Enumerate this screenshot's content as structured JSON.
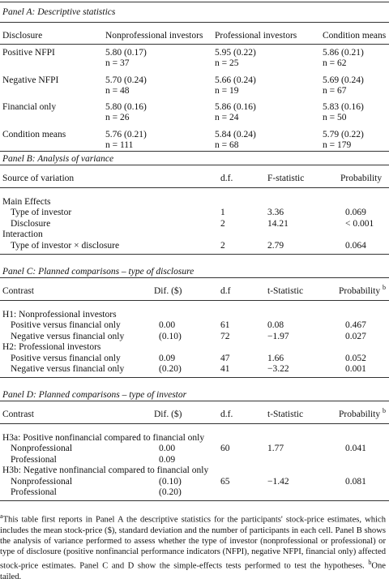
{
  "panel_a": {
    "title": "Panel A: Descriptive statistics",
    "headers": [
      "Disclosure",
      "Nonprofessional investors",
      "Professional investors",
      "Condition means"
    ],
    "rows": [
      {
        "label": "Positive NFPI",
        "cells": [
          [
            "5.80 (0.17)",
            "n = 37"
          ],
          [
            "5.95 (0.22)",
            "n = 25"
          ],
          [
            "5.86 (0.21)",
            "n = 62"
          ]
        ]
      },
      {
        "label": "Negative NFPI",
        "cells": [
          [
            "5.70 (0.24)",
            "n = 48"
          ],
          [
            "5.66 (0.24)",
            "n = 19"
          ],
          [
            "5.69 (0.24)",
            "n = 67"
          ]
        ]
      },
      {
        "label": "Financial only",
        "cells": [
          [
            "5.80 (0.16)",
            "n = 26"
          ],
          [
            "5.86 (0.16)",
            "n = 24"
          ],
          [
            "5.83 (0.16)",
            "n = 50"
          ]
        ]
      },
      {
        "label": "Condition means",
        "cells": [
          [
            "5.76 (0.21)",
            "n = 111"
          ],
          [
            "5.84 (0.24)",
            "n = 68"
          ],
          [
            "5.79 (0.22)",
            "n = 179"
          ]
        ]
      }
    ]
  },
  "panel_b": {
    "title": "Panel B: Analysis of variance",
    "headers": [
      "Source of variation",
      "d.f.",
      "F-statistic",
      "Probability"
    ],
    "rows": [
      [
        "Main Effects"
      ],
      [
        "Type of investor",
        "1",
        "3.36",
        "0.069"
      ],
      [
        "Disclosure",
        "2",
        "14.21",
        "< 0.001"
      ],
      [
        "Interaction"
      ],
      [
        "Type of investor × disclosure",
        "2",
        "2.79",
        "0.064"
      ]
    ]
  },
  "panel_c": {
    "title": "Panel C: Planned comparisons – type of disclosure",
    "headers": [
      "Contrast",
      "Dif. ($)",
      "d.f",
      "t-Statistic",
      "Probability"
    ],
    "header_note": "b",
    "rows": [
      [
        "H1: Nonprofessional investors"
      ],
      [
        "Positive versus financial only",
        "0.00",
        "61",
        "0.08",
        "0.467"
      ],
      [
        "Negative versus financial only",
        "(0.10)",
        "72",
        "−1.97",
        "0.027"
      ],
      [
        "H2: Professional investors"
      ],
      [
        "Positive versus financial only",
        "0.09",
        "47",
        "1.66",
        "0.052"
      ],
      [
        "Negative versus financial only",
        "(0.20)",
        "41",
        "−3.22",
        "0.001"
      ]
    ]
  },
  "panel_d": {
    "title": "Panel D: Planned comparisons – type of investor",
    "headers": [
      "Contrast",
      "Dif. ($)",
      "d.f.",
      "t-Statistic",
      "Probability"
    ],
    "header_note": "b",
    "rows": [
      [
        "H3a: Positive nonfinancial compared to financial only"
      ],
      [
        "Nonprofessional",
        "0.00",
        "60",
        "1.77",
        "0.041"
      ],
      [
        "Professional",
        "0.09",
        null,
        null,
        null
      ],
      [
        "H3b: Negative nonfinancial compared to financial only"
      ],
      [
        "Nonprofessional",
        "(0.10)",
        "65",
        "−1.42",
        "0.081"
      ],
      [
        "Professional",
        "(0.20)",
        null,
        null,
        null
      ]
    ]
  },
  "footnotes": [
    {
      "mark": "a",
      "text": "This table first reports in Panel A the descriptive statistics for the participants' stock-price estimates, which includes the mean stock-price ($), standard deviation and the number of participants in each cell. Panel B shows the analysis of variance performed to assess whether the type of investor (nonprofessional or professional) or type of disclosure (positive nonfinancial performance indicators (NFPI), negative NFPI, financial only) affected stock-price estimates. Panel C and D show the simple-effects tests performed to test the hypotheses. "
    },
    {
      "mark": "b",
      "text": "One tailed."
    }
  ]
}
